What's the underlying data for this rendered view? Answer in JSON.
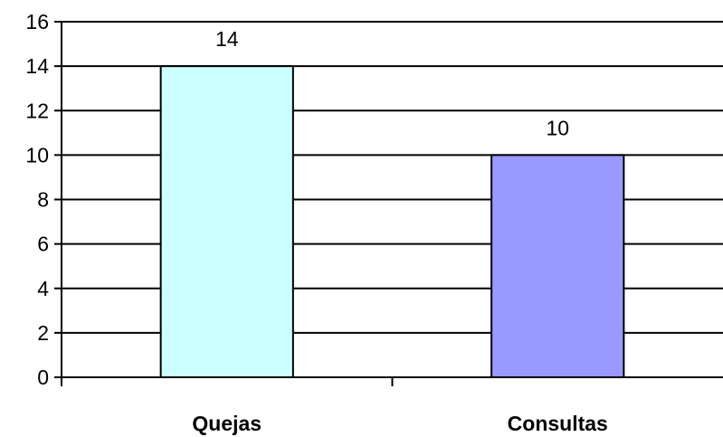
{
  "chart_data": {
    "type": "bar",
    "title": "",
    "xlabel": "",
    "ylabel": "",
    "categories": [
      "Quejas",
      "Consultas"
    ],
    "values": [
      14,
      10
    ],
    "data_labels": [
      "14",
      "10"
    ],
    "ylim": [
      0,
      16
    ],
    "yticks": [
      0,
      2,
      4,
      6,
      8,
      10,
      12,
      14,
      16
    ],
    "grid": true,
    "legend": "none",
    "colors": [
      "#ccffff",
      "#9999ff"
    ],
    "bar_border_color": "#000000",
    "gridline_color": "#000000"
  }
}
